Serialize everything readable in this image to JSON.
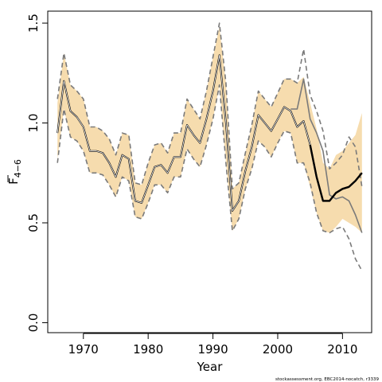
{
  "chart_data": {
    "type": "line",
    "xlabel": "Year",
    "ylabel": {
      "main": "F",
      "sub": "4−6"
    },
    "credit": "stockassessment.org, EBC2014-nocatch, r3339",
    "xlim": [
      1964.5,
      2014.5
    ],
    "ylim": [
      -0.05,
      1.56
    ],
    "xticks": [
      1970,
      1980,
      1990,
      2000,
      2010
    ],
    "xtick_labels": [
      "1970",
      "1980",
      "1990",
      "2000",
      "2010"
    ],
    "yticks": [
      0.0,
      0.5,
      1.0,
      1.5
    ],
    "ytick_labels": [
      "0.0",
      "0.5",
      "1.0",
      "1.5"
    ],
    "colors": {
      "band": "#f6dcae",
      "primary": "#000000",
      "secondary": "#7a7a7a"
    },
    "series": [
      {
        "role": "primary-estimate",
        "x": [
          1966,
          1967,
          1968,
          1969,
          1970,
          1971,
          1972,
          1973,
          1974,
          1975,
          1976,
          1977,
          1978,
          1979,
          1980,
          1981,
          1982,
          1983,
          1984,
          1985,
          1986,
          1987,
          1988,
          1989,
          1990,
          1991,
          1992,
          1993,
          1994,
          1995,
          1996,
          1997,
          1998,
          1999,
          2000,
          2001,
          2002,
          2003,
          2004,
          2005,
          2006,
          2007,
          2008,
          2009,
          2010,
          2011,
          2012,
          2013
        ],
        "y": [
          0.95,
          1.21,
          1.06,
          1.03,
          0.98,
          0.86,
          0.86,
          0.85,
          0.8,
          0.73,
          0.84,
          0.82,
          0.61,
          0.6,
          0.69,
          0.78,
          0.79,
          0.75,
          0.83,
          0.83,
          0.99,
          0.94,
          0.9,
          1.02,
          1.16,
          1.34,
          1.0,
          0.56,
          0.61,
          0.76,
          0.88,
          1.04,
          1.0,
          0.96,
          1.02,
          1.08,
          1.06,
          0.98,
          1.01,
          0.89,
          0.73,
          0.61,
          0.61,
          0.65,
          0.67,
          0.68,
          0.71,
          0.75
        ]
      },
      {
        "role": "lower-bound",
        "x": [
          1966,
          1967,
          1968,
          1969,
          1970,
          1971,
          1972,
          1973,
          1974,
          1975,
          1976,
          1977,
          1978,
          1979,
          1980,
          1981,
          1982,
          1983,
          1984,
          1985,
          1986,
          1987,
          1988,
          1989,
          1990,
          1991,
          1992,
          1993,
          1994,
          1995,
          1996,
          1997,
          1998,
          1999,
          2000,
          2001,
          2002,
          2003,
          2004,
          2005,
          2006,
          2007,
          2008,
          2009,
          2010,
          2011,
          2012,
          2013
        ],
        "y": [
          0.8,
          1.07,
          0.93,
          0.91,
          0.86,
          0.75,
          0.75,
          0.74,
          0.69,
          0.63,
          0.73,
          0.71,
          0.53,
          0.52,
          0.6,
          0.69,
          0.69,
          0.65,
          0.73,
          0.73,
          0.87,
          0.82,
          0.78,
          0.89,
          1.02,
          1.19,
          0.8,
          0.46,
          0.52,
          0.67,
          0.77,
          0.91,
          0.88,
          0.83,
          0.9,
          0.96,
          0.95,
          0.8,
          0.8,
          0.7,
          0.55,
          0.46,
          0.45,
          0.47,
          0.48,
          0.42,
          0.32,
          0.26
        ]
      },
      {
        "role": "upper-bound",
        "x": [
          1966,
          1967,
          1968,
          1969,
          1970,
          1971,
          1972,
          1973,
          1974,
          1975,
          1976,
          1977,
          1978,
          1979,
          1980,
          1981,
          1982,
          1983,
          1984,
          1985,
          1986,
          1987,
          1988,
          1989,
          1990,
          1991,
          1992,
          1993,
          1994,
          1995,
          1996,
          1997,
          1998,
          1999,
          2000,
          2001,
          2002,
          2003,
          2004,
          2005,
          2006,
          2007,
          2008,
          2009,
          2010,
          2011,
          2012,
          2013
        ],
        "y": [
          1.12,
          1.35,
          1.19,
          1.16,
          1.12,
          0.98,
          0.98,
          0.96,
          0.92,
          0.84,
          0.95,
          0.94,
          0.7,
          0.69,
          0.8,
          0.89,
          0.9,
          0.85,
          0.95,
          0.95,
          1.12,
          1.07,
          1.02,
          1.16,
          1.33,
          1.5,
          1.2,
          0.67,
          0.7,
          0.85,
          0.99,
          1.16,
          1.12,
          1.08,
          1.15,
          1.22,
          1.22,
          1.2,
          1.37,
          1.14,
          1.06,
          0.96,
          0.77,
          0.8,
          0.84,
          0.93,
          0.88,
          0.68
        ]
      },
      {
        "role": "secondary-estimate",
        "x": [
          2002,
          2003,
          2004,
          2005,
          2006,
          2007,
          2008,
          2009,
          2010,
          2011,
          2012,
          2013
        ],
        "y": [
          1.07,
          1.07,
          1.22,
          1.02,
          0.95,
          0.86,
          0.64,
          0.62,
          0.63,
          0.61,
          0.54,
          0.45
        ]
      }
    ],
    "band": {
      "x": [
        1966,
        1967,
        1968,
        1969,
        1970,
        1971,
        1972,
        1973,
        1974,
        1975,
        1976,
        1977,
        1978,
        1979,
        1980,
        1981,
        1982,
        1983,
        1984,
        1985,
        1986,
        1987,
        1988,
        1989,
        1990,
        1991,
        1992,
        1993,
        1994,
        1995,
        1996,
        1997,
        1998,
        1999,
        2000,
        2001,
        2002,
        2003,
        2004,
        2005,
        2006,
        2007,
        2008,
        2009,
        2010,
        2011,
        2012,
        2013
      ],
      "lower": [
        0.82,
        1.07,
        0.93,
        0.91,
        0.86,
        0.75,
        0.75,
        0.74,
        0.69,
        0.63,
        0.73,
        0.71,
        0.53,
        0.52,
        0.6,
        0.69,
        0.69,
        0.65,
        0.73,
        0.73,
        0.87,
        0.82,
        0.78,
        0.89,
        1.02,
        1.19,
        0.8,
        0.46,
        0.52,
        0.67,
        0.77,
        0.91,
        0.88,
        0.83,
        0.9,
        0.96,
        0.95,
        0.8,
        0.8,
        0.68,
        0.55,
        0.46,
        0.45,
        0.48,
        0.52,
        0.5,
        0.48,
        0.45
      ],
      "upper": [
        1.1,
        1.35,
        1.19,
        1.16,
        1.12,
        0.98,
        0.98,
        0.96,
        0.92,
        0.84,
        0.95,
        0.94,
        0.7,
        0.69,
        0.8,
        0.89,
        0.9,
        0.85,
        0.95,
        0.95,
        1.12,
        1.07,
        1.02,
        1.16,
        1.33,
        1.48,
        1.2,
        0.67,
        0.7,
        0.85,
        0.99,
        1.16,
        1.12,
        1.08,
        1.15,
        1.22,
        1.22,
        1.2,
        1.23,
        1.1,
        0.97,
        0.8,
        0.77,
        0.84,
        0.86,
        0.9,
        0.94,
        1.05
      ]
    }
  }
}
